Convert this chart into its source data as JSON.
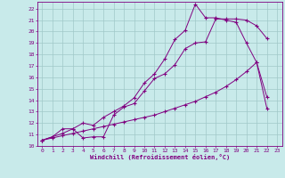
{
  "xlabel": "Windchill (Refroidissement éolien,°C)",
  "bg_color": "#c8eaea",
  "grid_color": "#a0c8c8",
  "line_color": "#800080",
  "xlim": [
    -0.5,
    23.5
  ],
  "ylim": [
    10.0,
    22.6
  ],
  "xticks": [
    0,
    1,
    2,
    3,
    4,
    5,
    6,
    7,
    8,
    9,
    10,
    11,
    12,
    13,
    14,
    15,
    16,
    17,
    18,
    19,
    20,
    21,
    22,
    23
  ],
  "yticks": [
    10,
    11,
    12,
    13,
    14,
    15,
    16,
    17,
    18,
    19,
    20,
    21,
    22
  ],
  "curve1_x": [
    0,
    1,
    2,
    3,
    4,
    5,
    6,
    7,
    8,
    9,
    10,
    11,
    12,
    13,
    14,
    15,
    16,
    17,
    18,
    19,
    20,
    21,
    22
  ],
  "curve1_y": [
    10.5,
    10.8,
    11.5,
    11.5,
    10.7,
    10.8,
    10.8,
    12.7,
    13.4,
    13.7,
    14.8,
    15.9,
    16.3,
    17.1,
    18.5,
    19.0,
    19.1,
    21.1,
    21.1,
    21.1,
    21.0,
    20.5,
    19.4
  ],
  "curve2_x": [
    0,
    1,
    2,
    3,
    4,
    5,
    6,
    7,
    8,
    9,
    10,
    11,
    12,
    13,
    14,
    15,
    16,
    17,
    18,
    19,
    20,
    21,
    22
  ],
  "curve2_y": [
    10.5,
    10.8,
    11.1,
    11.5,
    12.0,
    11.8,
    12.5,
    13.0,
    13.5,
    14.2,
    15.5,
    16.3,
    17.6,
    19.3,
    20.1,
    22.4,
    21.2,
    21.2,
    21.0,
    20.8,
    19.0,
    17.3,
    14.3
  ],
  "curve3_x": [
    0,
    1,
    2,
    3,
    4,
    5,
    6,
    7,
    8,
    9,
    10,
    11,
    12,
    13,
    14,
    15,
    16,
    17,
    18,
    19,
    20,
    21,
    22
  ],
  "curve3_y": [
    10.5,
    10.7,
    10.9,
    11.1,
    11.3,
    11.5,
    11.7,
    11.9,
    12.1,
    12.3,
    12.5,
    12.7,
    13.0,
    13.3,
    13.6,
    13.9,
    14.3,
    14.7,
    15.2,
    15.8,
    16.5,
    17.3,
    13.3
  ]
}
